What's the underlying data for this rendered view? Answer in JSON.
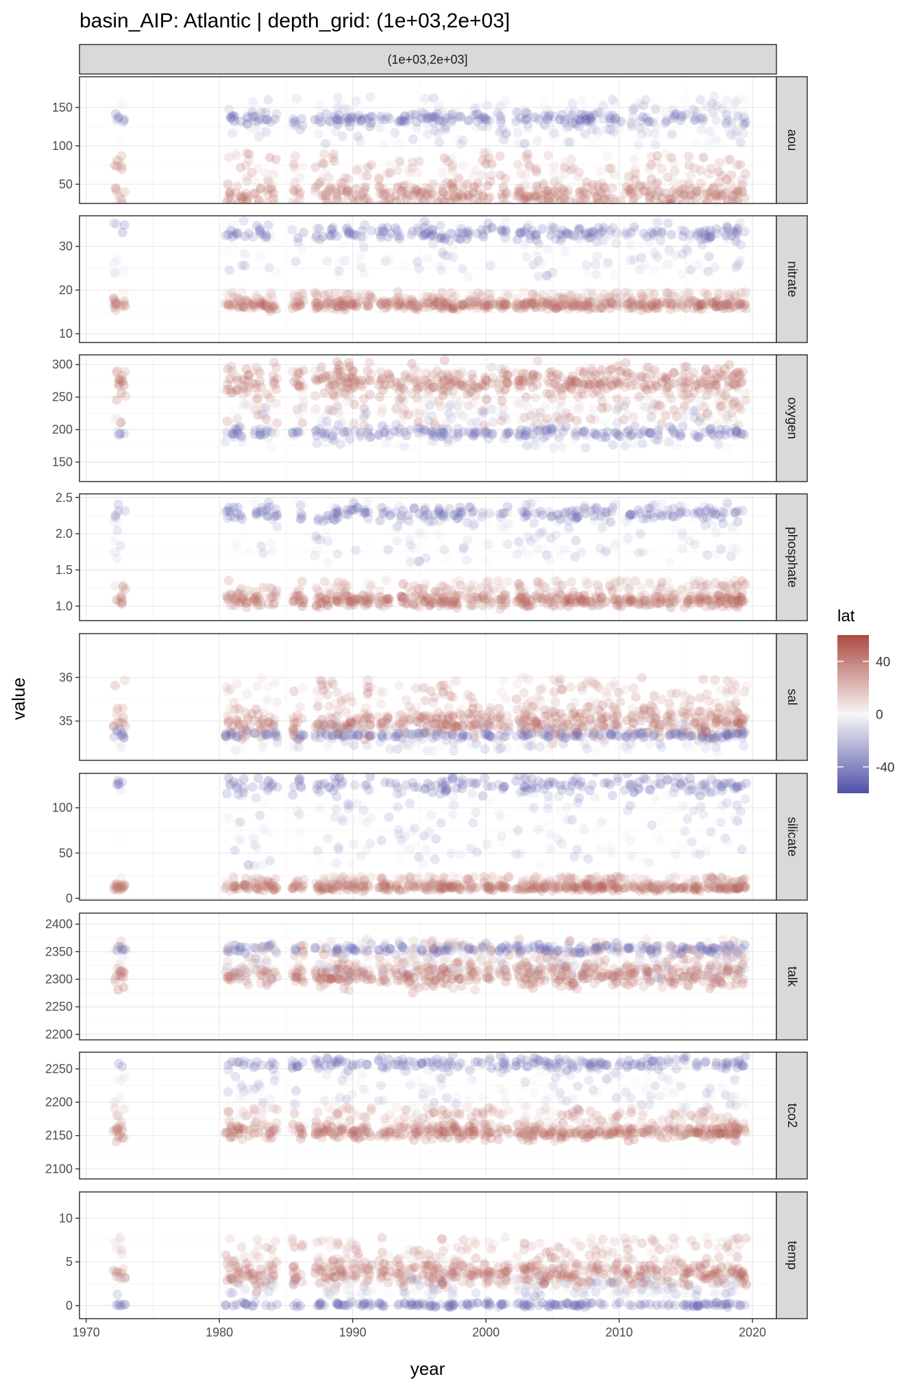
{
  "title": "basin_AIP: Atlantic | depth_grid: (1e+03,2e+03]",
  "facet_top_label": "(1e+03,2e+03]",
  "colors": {
    "low": "#5050a8",
    "mid": "#f7f7f7",
    "high": "#ab4a40",
    "strip_fill": "#d9d9d9",
    "grid_major": "#ebebeb",
    "grid_minor": "#f5f5f5",
    "panel_border": "#333333"
  },
  "chart_data": {
    "type": "scatter",
    "title": "basin_AIP: Atlantic | depth_grid: (1e+03,2e+03]",
    "xlabel": "year",
    "ylabel": "value",
    "xlim": [
      1969.5,
      2021.8
    ],
    "x_ticks": [
      1970,
      1980,
      1990,
      2000,
      2010,
      2020
    ],
    "x_tick_labels": [
      "1970",
      "1980",
      "1990",
      "2000",
      "2010",
      "2020"
    ],
    "color_scale": {
      "variable": "lat",
      "domain": [
        -60,
        60
      ],
      "ticks": [
        40,
        0,
        -40
      ],
      "tick_labels": [
        "40",
        "0",
        "-40"
      ]
    },
    "cruise_years": [
      1972.5,
      1980.9,
      1981.8,
      1982.9,
      1983.9,
      1985.9,
      1987.6,
      1988.5,
      1989.2,
      1990.0,
      1991.0,
      1992.4,
      1993.6,
      1994.6,
      1995.6,
      1996.4,
      1997.1,
      1997.9,
      1999.0,
      2000.1,
      2001.3,
      2002.7,
      2003.3,
      2004.2,
      2005.1,
      2006.0,
      2006.9,
      2007.8,
      2008.7,
      2009.7,
      2010.8,
      2011.9,
      2012.8,
      2013.9,
      2015.0,
      2016.0,
      2016.9,
      2017.7,
      2018.5,
      2019.1
    ],
    "panels": [
      {
        "var": "aou",
        "ylim": [
          25,
          190
        ],
        "ticks": [
          50,
          100,
          150
        ],
        "tick_labels": [
          "50",
          "100",
          "150"
        ],
        "north_line": 35,
        "north_upper": 80,
        "south_cluster": 135,
        "south_range": [
          100,
          165
        ]
      },
      {
        "var": "nitrate",
        "ylim": [
          8,
          37
        ],
        "ticks": [
          10,
          20,
          30
        ],
        "tick_labels": [
          "10",
          "20",
          "30"
        ],
        "north_line": 16.5,
        "north_upper": 19,
        "south_cluster": 33,
        "south_range": [
          23,
          36
        ]
      },
      {
        "var": "oxygen",
        "ylim": [
          120,
          315
        ],
        "ticks": [
          150,
          200,
          250,
          300
        ],
        "tick_labels": [
          "150",
          "200",
          "250",
          "300"
        ],
        "north_line": 275,
        "north_upper": 205,
        "south_cluster": 195,
        "south_range": [
          170,
          240
        ]
      },
      {
        "var": "phosphate",
        "ylim": [
          0.8,
          2.55
        ],
        "ticks": [
          1.0,
          1.5,
          2.0,
          2.5
        ],
        "tick_labels": [
          "1.0",
          "1.5",
          "2.0",
          "2.5"
        ],
        "north_line": 1.07,
        "north_upper": 1.3,
        "south_cluster": 2.28,
        "south_range": [
          1.6,
          2.45
        ]
      },
      {
        "var": "sal",
        "ylim": [
          34.1,
          37.0
        ],
        "ticks": [
          35,
          36
        ],
        "tick_labels": [
          "35",
          "36"
        ],
        "north_line": 34.95,
        "north_upper": 35.8,
        "south_cluster": 34.68,
        "south_range": [
          34.3,
          34.95
        ]
      },
      {
        "var": "silicate",
        "ylim": [
          -2,
          138
        ],
        "ticks": [
          0,
          50,
          100
        ],
        "tick_labels": [
          "0",
          "50",
          "100"
        ],
        "north_line": 12,
        "north_upper": 22,
        "south_cluster": 125,
        "south_range": [
          35,
          120
        ]
      },
      {
        "var": "talk",
        "ylim": [
          2190,
          2420
        ],
        "ticks": [
          2200,
          2250,
          2300,
          2350,
          2400
        ],
        "tick_labels": [
          "2200",
          "2250",
          "2300",
          "2350",
          "2400"
        ],
        "north_line": 2305,
        "north_upper": 2360,
        "south_cluster": 2355,
        "south_range": [
          2300,
          2365
        ]
      },
      {
        "var": "tco2",
        "ylim": [
          2085,
          2275
        ],
        "ticks": [
          2100,
          2150,
          2200,
          2250
        ],
        "tick_labels": [
          "2100",
          "2150",
          "2200",
          "2250"
        ],
        "north_line": 2155,
        "north_upper": 2185,
        "south_cluster": 2258,
        "south_range": [
          2190,
          2265
        ]
      },
      {
        "var": "temp",
        "ylim": [
          -1.5,
          13
        ],
        "ticks": [
          0,
          5,
          10
        ],
        "tick_labels": [
          "0",
          "5",
          "10"
        ],
        "north_line": 3.5,
        "north_upper": 7,
        "south_cluster": 0.1,
        "south_range": [
          1.0,
          3.2
        ]
      }
    ]
  }
}
